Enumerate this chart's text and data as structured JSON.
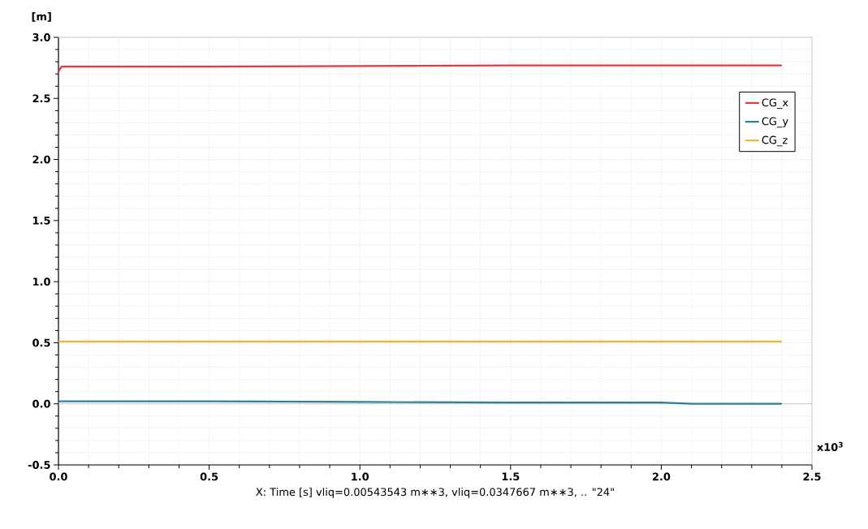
{
  "chart_data": {
    "type": "line",
    "xlabel": "X: Time [s] vliq=0.00543543 m∗∗3, vliq=0.0347667 m∗∗3, .. \"24\"",
    "ylabel": "[m]",
    "x": [
      0,
      0.01,
      0.5,
      1.0,
      1.5,
      2.0,
      2.1,
      2.4
    ],
    "series": [
      {
        "name": "CG_x",
        "color": "#e8383d",
        "values": [
          2.72,
          2.76,
          2.76,
          2.765,
          2.77,
          2.77,
          2.77,
          2.77
        ]
      },
      {
        "name": "CG_y",
        "color": "#2e7f9a",
        "values": [
          0.02,
          0.02,
          0.02,
          0.015,
          0.01,
          0.01,
          0.0,
          0.0
        ]
      },
      {
        "name": "CG_z",
        "color": "#f5b335",
        "values": [
          0.51,
          0.51,
          0.51,
          0.51,
          0.51,
          0.51,
          0.51,
          0.51
        ]
      }
    ],
    "xlim": [
      0,
      2.5
    ],
    "ylim": [
      -0.5,
      3.0
    ],
    "xticks": [
      {
        "value": 0,
        "label": "0.0"
      },
      {
        "value": 0.5,
        "label": "0.5"
      },
      {
        "value": 1.0,
        "label": "1.0"
      },
      {
        "value": 1.5,
        "label": "1.5"
      },
      {
        "value": 2.0,
        "label": "2.0"
      },
      {
        "value": 2.5,
        "label": "2.5"
      }
    ],
    "yticks": [
      {
        "value": -0.5,
        "label": "-0.5"
      },
      {
        "value": 0,
        "label": "0.0"
      },
      {
        "value": 0.5,
        "label": "0.5"
      },
      {
        "value": 1.0,
        "label": "1.0"
      },
      {
        "value": 1.5,
        "label": "1.5"
      },
      {
        "value": 2.0,
        "label": "2.0"
      },
      {
        "value": 2.5,
        "label": "2.5"
      },
      {
        "value": 3.0,
        "label": "3.0"
      }
    ],
    "ref_lines": [
      {
        "axis": "y",
        "value": 0,
        "color": "#c8c8c8"
      }
    ],
    "annotations": [
      "x10$^{3}$"
    ],
    "grid": true,
    "legend": "top right",
    "marker": "none",
    "line_style": "solid"
  }
}
